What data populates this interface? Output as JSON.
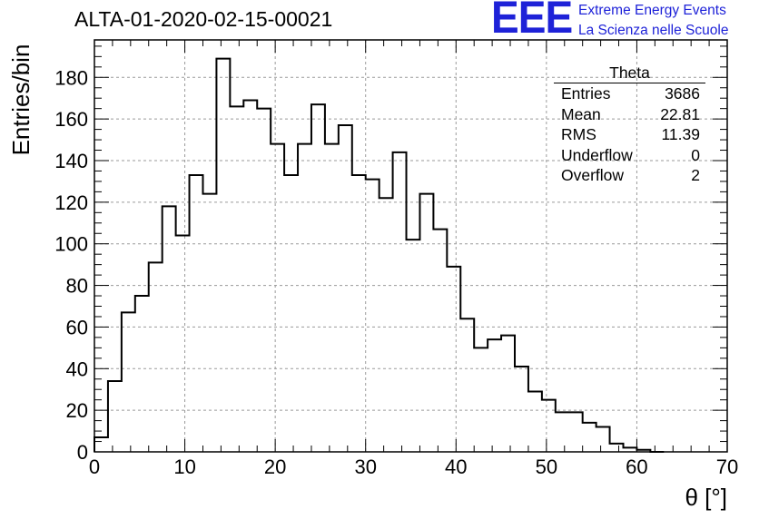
{
  "chart_data": {
    "type": "histogram",
    "title": "ALTA-01-2020-02-15-00021",
    "xlabel": "θ [°]",
    "ylabel": "Entries/bin",
    "xlim": [
      0,
      70
    ],
    "ylim": [
      0,
      198
    ],
    "bin_width": 1.5,
    "x_ticks": [
      0,
      10,
      20,
      30,
      40,
      50,
      60,
      70
    ],
    "y_ticks": [
      0,
      20,
      40,
      60,
      80,
      100,
      120,
      140,
      160,
      180
    ],
    "grid": true,
    "values": [
      7,
      34,
      67,
      75,
      91,
      118,
      104,
      133,
      124,
      189,
      166,
      169,
      165,
      148,
      133,
      148,
      167,
      148,
      157,
      133,
      131,
      122,
      144,
      102,
      124,
      107,
      89,
      64,
      50,
      54,
      56,
      41,
      29,
      25,
      19,
      19,
      14,
      12,
      4,
      2,
      1,
      0
    ],
    "stats_box": {
      "name": "Theta",
      "rows": [
        {
          "label": "Entries",
          "value": "3686"
        },
        {
          "label": "Mean",
          "value": "22.81"
        },
        {
          "label": "RMS",
          "value": "11.39"
        },
        {
          "label": "Underflow",
          "value": "0"
        },
        {
          "label": "Overflow",
          "value": "2"
        }
      ]
    }
  },
  "logo": {
    "mark": "EEE",
    "line1": "Extreme Energy Events",
    "line2": "La Scienza nelle Scuole"
  },
  "colors": {
    "logo": "#1e22d8",
    "line": "#000000",
    "grid": "#9a9a9a"
  }
}
